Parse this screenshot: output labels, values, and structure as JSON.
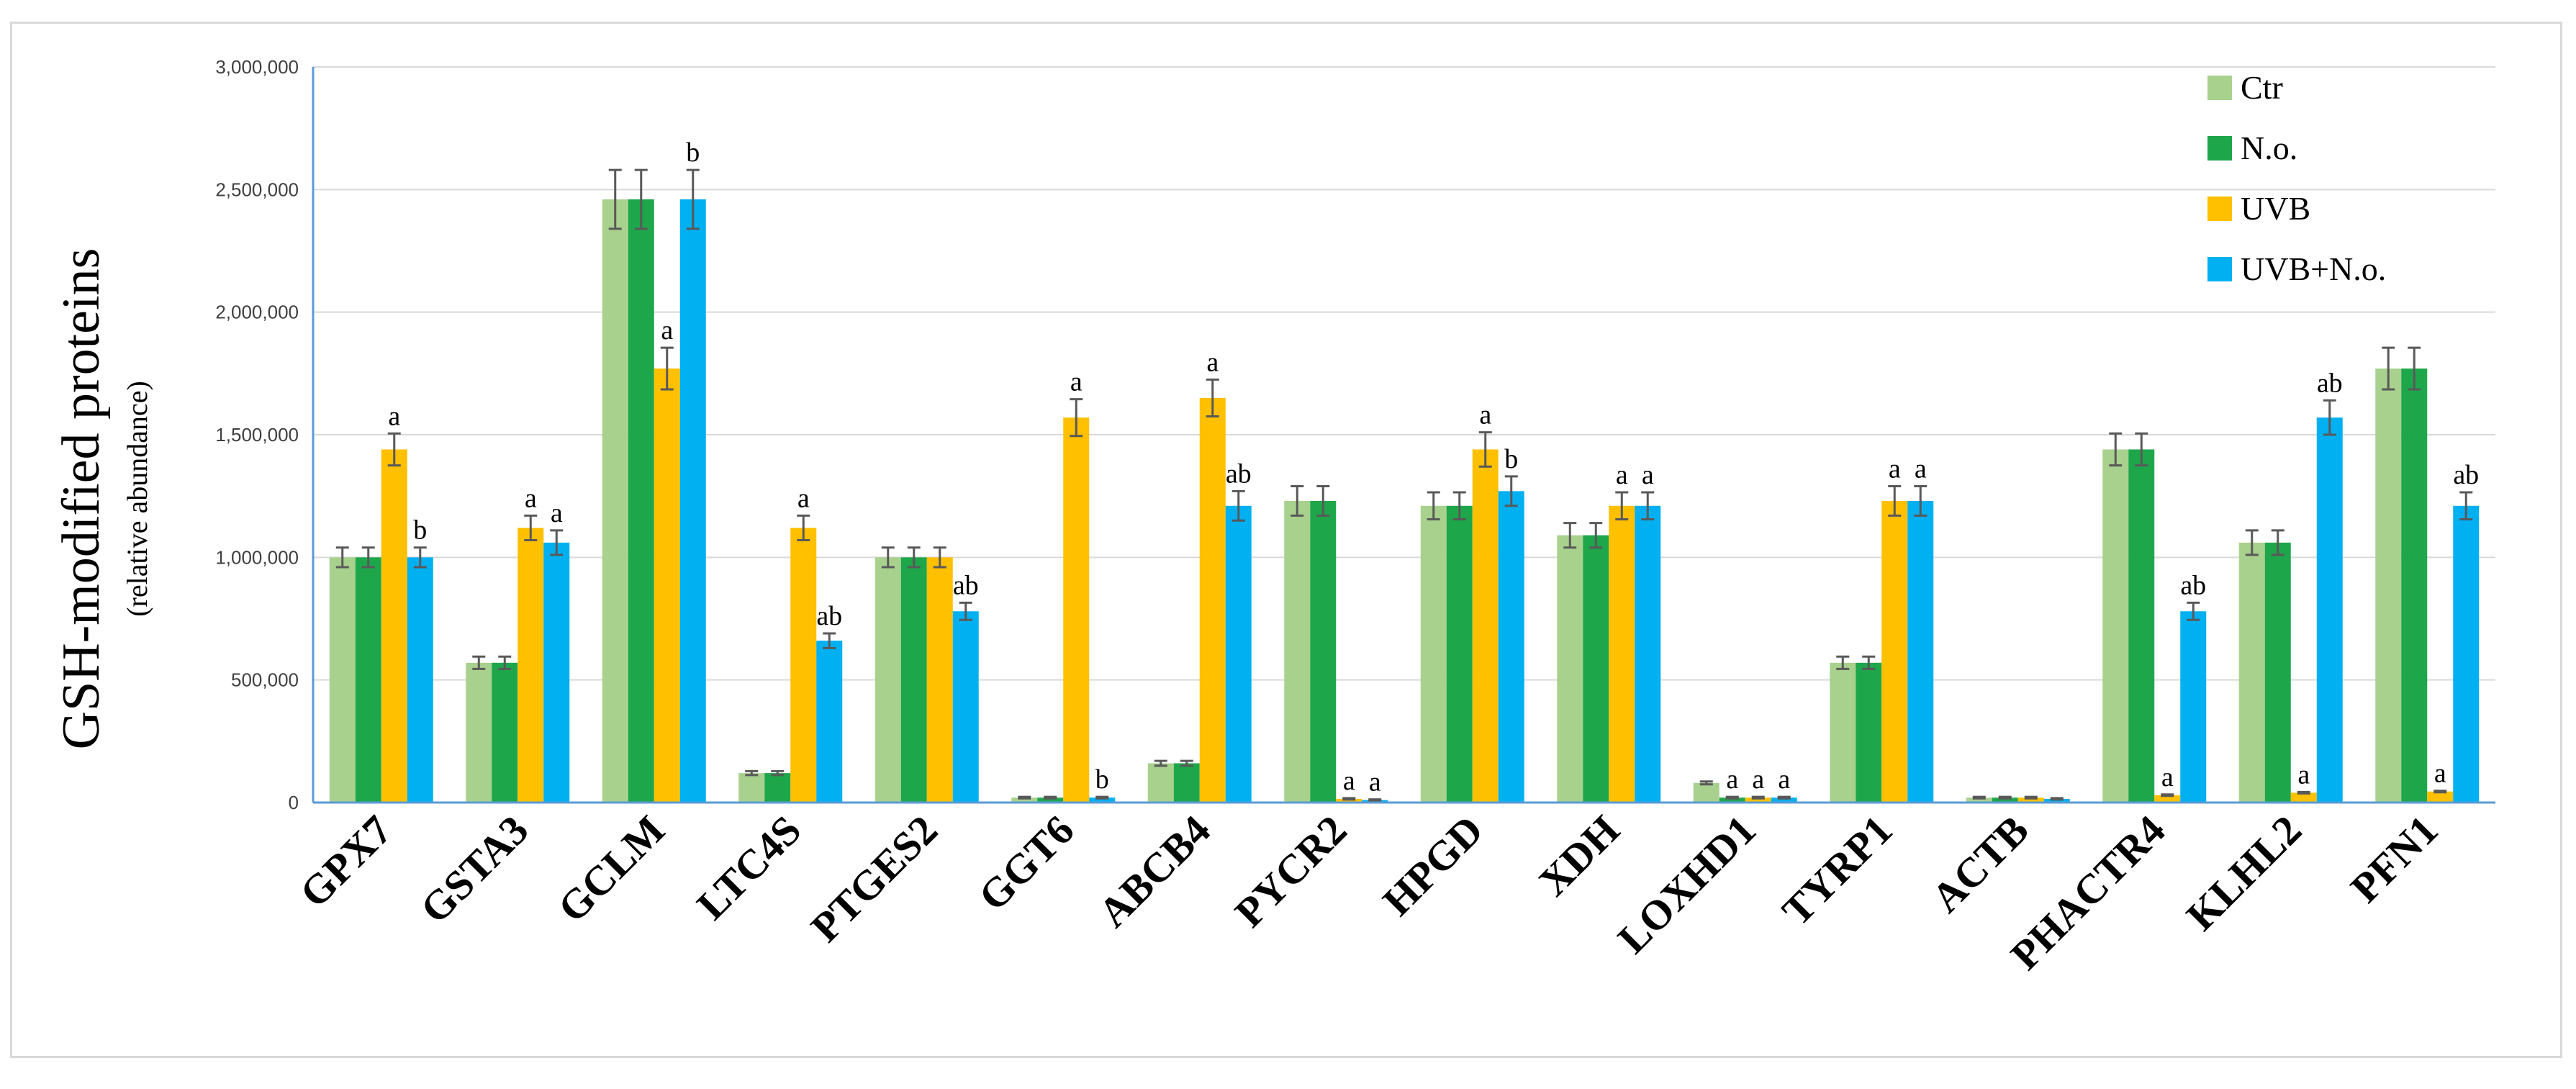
{
  "chart_data": {
    "type": "bar",
    "ylabel": "GSH-modified proteins",
    "ylabel_sub": "(relative abundance)",
    "ylim": [
      0,
      3000000
    ],
    "yticks": [
      0,
      500000,
      1000000,
      1500000,
      2000000,
      2500000,
      3000000
    ],
    "ytick_labels": [
      "0",
      "500,000",
      "1,000,000",
      "1,500,000",
      "2,000,000",
      "2,500,000",
      "3,000,000"
    ],
    "grid": true,
    "legend_position": "top-right",
    "categories": [
      "GPX7",
      "GSTA3",
      "GCLM",
      "LTC4S",
      "PTGES2",
      "GGT6",
      "ABCB4",
      "PYCR2",
      "HPGD",
      "XDH",
      "LOXHD1",
      "TYRP1",
      "ACTB",
      "PHACTR4",
      "KLHL2",
      "PFN1"
    ],
    "series": [
      {
        "name": "Ctr",
        "color": "#a9d18e",
        "values": [
          1000000,
          570000,
          2460000,
          120000,
          1000000,
          20000,
          160000,
          1230000,
          1210000,
          1090000,
          80000,
          570000,
          20000,
          1440000,
          1060000,
          1770000
        ],
        "errors": [
          40000,
          25000,
          120000,
          8000,
          40000,
          3000,
          10000,
          60000,
          55000,
          50000,
          6000,
          25000,
          3000,
          65000,
          50000,
          85000
        ],
        "sig": [
          "",
          "",
          "",
          "",
          "",
          "",
          "",
          "",
          "",
          "",
          "",
          "",
          "",
          "",
          "",
          ""
        ]
      },
      {
        "name": "N.o.",
        "color": "#1ea64b",
        "values": [
          1000000,
          570000,
          2460000,
          120000,
          1000000,
          20000,
          160000,
          1230000,
          1210000,
          1090000,
          20000,
          570000,
          20000,
          1440000,
          1060000,
          1770000
        ],
        "errors": [
          40000,
          25000,
          120000,
          8000,
          40000,
          3000,
          10000,
          60000,
          55000,
          50000,
          3000,
          25000,
          3000,
          65000,
          50000,
          85000
        ],
        "sig": [
          "",
          "",
          "",
          "",
          "",
          "",
          "",
          "",
          "",
          "",
          "a",
          "",
          "",
          "",
          "",
          ""
        ]
      },
      {
        "name": "UVB",
        "color": "#ffc000",
        "values": [
          1440000,
          1120000,
          1770000,
          1120000,
          1000000,
          1570000,
          1650000,
          15000,
          1440000,
          1210000,
          20000,
          1230000,
          20000,
          30000,
          40000,
          45000
        ],
        "errors": [
          65000,
          50000,
          85000,
          50000,
          40000,
          75000,
          75000,
          3000,
          70000,
          55000,
          3000,
          60000,
          3000,
          3000,
          3000,
          3000
        ],
        "sig": [
          "a",
          "a",
          "a",
          "a",
          "",
          "a",
          "a",
          "a",
          "a",
          "a",
          "a",
          "a",
          "",
          "a",
          "a",
          "a"
        ]
      },
      {
        "name": "UVB+N.o.",
        "color": "#00b0f0",
        "values": [
          1000000,
          1060000,
          2460000,
          660000,
          780000,
          20000,
          1210000,
          10000,
          1270000,
          1210000,
          20000,
          1230000,
          15000,
          780000,
          1570000,
          1210000
        ],
        "errors": [
          40000,
          50000,
          120000,
          30000,
          35000,
          3000,
          60000,
          3000,
          60000,
          55000,
          3000,
          60000,
          3000,
          35000,
          70000,
          55000
        ],
        "sig": [
          "b",
          "a",
          "b",
          "ab",
          "ab",
          "b",
          "ab",
          "a",
          "b",
          "a",
          "a",
          "a",
          "",
          "ab",
          "ab",
          "ab"
        ]
      }
    ]
  }
}
